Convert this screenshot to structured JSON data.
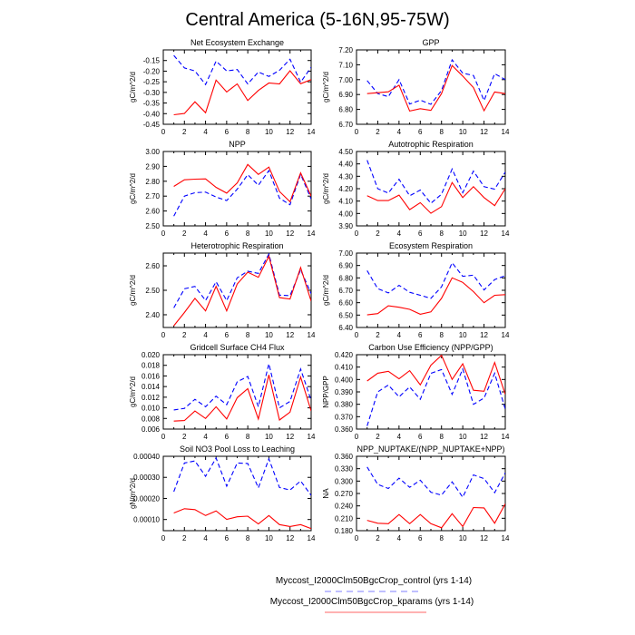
{
  "title": "Central America (5-16N,95-75W)",
  "legend": [
    {
      "label": "Myccost_I2000Clm50BgcCrop_control (yrs 1-14)",
      "color": "#0000ff",
      "style": "dashed"
    },
    {
      "label": "Myccost_I2000Clm50BgcCrop_kparams (yrs 1-14)",
      "color": "#ff0000",
      "style": "solid"
    }
  ],
  "chart_data": [
    {
      "type": "line",
      "title": "Net Ecosystem Exchange",
      "ylabel": "gC/m^2/d",
      "xlim": [
        0,
        14
      ],
      "ylim": [
        -0.45,
        -0.1
      ],
      "xticks": [
        "0",
        "2",
        "4",
        "6",
        "8",
        "10",
        "12",
        "14"
      ],
      "yticks": [
        {
          "v": -0.45,
          "l": "-0.45"
        },
        {
          "v": -0.4,
          "l": "-0.40"
        },
        {
          "v": -0.35,
          "l": "-0.35"
        },
        {
          "v": -0.3,
          "l": "-0.30"
        },
        {
          "v": -0.25,
          "l": "-0.25"
        },
        {
          "v": -0.2,
          "l": "-0.20"
        },
        {
          "v": -0.15,
          "l": "-0.15"
        }
      ],
      "x": [
        1,
        2,
        3,
        4,
        5,
        6,
        7,
        8,
        9,
        10,
        11,
        12,
        13,
        14
      ],
      "series": [
        {
          "name": "control",
          "values": [
            -0.126,
            -0.185,
            -0.199,
            -0.263,
            -0.153,
            -0.199,
            -0.192,
            -0.26,
            -0.204,
            -0.225,
            -0.196,
            -0.144,
            -0.252,
            -0.182
          ]
        },
        {
          "name": "kparams",
          "values": [
            -0.405,
            -0.399,
            -0.344,
            -0.396,
            -0.242,
            -0.298,
            -0.26,
            -0.338,
            -0.291,
            -0.256,
            -0.26,
            -0.198,
            -0.259,
            -0.24
          ]
        }
      ]
    },
    {
      "type": "line",
      "title": "GPP",
      "ylabel": "gC/m^2/d",
      "xlim": [
        0,
        14
      ],
      "ylim": [
        6.7,
        7.2
      ],
      "xticks": [
        "0",
        "2",
        "4",
        "6",
        "8",
        "10",
        "12",
        "14"
      ],
      "yticks": [
        {
          "v": 6.7,
          "l": "6.70"
        },
        {
          "v": 6.8,
          "l": "6.80"
        },
        {
          "v": 6.9,
          "l": "6.90"
        },
        {
          "v": 7.0,
          "l": "7.00"
        },
        {
          "v": 7.1,
          "l": "7.10"
        },
        {
          "v": 7.2,
          "l": "7.20"
        }
      ],
      "x": [
        1,
        2,
        3,
        4,
        5,
        6,
        7,
        8,
        9,
        10,
        11,
        12,
        13,
        14
      ],
      "series": [
        {
          "name": "control",
          "values": [
            6.994,
            6.906,
            6.886,
            7.0,
            6.836,
            6.862,
            6.834,
            6.927,
            7.133,
            7.044,
            7.028,
            6.86,
            7.04,
            7.0
          ]
        },
        {
          "name": "kparams",
          "values": [
            6.906,
            6.912,
            6.918,
            6.963,
            6.789,
            6.805,
            6.793,
            6.906,
            7.095,
            7.024,
            6.947,
            6.791,
            6.917,
            6.906
          ]
        }
      ]
    },
    {
      "type": "line",
      "title": "NPP",
      "ylabel": "gC/m^2/d",
      "xlim": [
        0,
        14
      ],
      "ylim": [
        2.5,
        3.0
      ],
      "xticks": [
        "0",
        "2",
        "4",
        "6",
        "8",
        "10",
        "12",
        "14"
      ],
      "yticks": [
        {
          "v": 2.5,
          "l": "2.50"
        },
        {
          "v": 2.6,
          "l": "2.60"
        },
        {
          "v": 2.7,
          "l": "2.70"
        },
        {
          "v": 2.8,
          "l": "2.80"
        },
        {
          "v": 2.9,
          "l": "2.90"
        },
        {
          "v": 3.0,
          "l": "3.00"
        }
      ],
      "x": [
        1,
        2,
        3,
        4,
        5,
        6,
        7,
        8,
        9,
        10,
        11,
        12,
        13,
        14
      ],
      "series": [
        {
          "name": "control",
          "values": [
            2.565,
            2.7,
            2.723,
            2.727,
            2.694,
            2.67,
            2.747,
            2.844,
            2.773,
            2.872,
            2.686,
            2.642,
            2.847,
            2.68
          ]
        },
        {
          "name": "kparams",
          "values": [
            2.765,
            2.81,
            2.814,
            2.816,
            2.759,
            2.72,
            2.789,
            2.913,
            2.846,
            2.895,
            2.731,
            2.662,
            2.856,
            2.7
          ]
        }
      ]
    },
    {
      "type": "line",
      "title": "Autotrophic Respiration",
      "ylabel": "gC/m^2/d",
      "xlim": [
        0,
        14
      ],
      "ylim": [
        3.9,
        4.5
      ],
      "xticks": [
        "0",
        "2",
        "4",
        "6",
        "8",
        "10",
        "12",
        "14"
      ],
      "yticks": [
        {
          "v": 3.9,
          "l": "3.90"
        },
        {
          "v": 4.0,
          "l": "4.00"
        },
        {
          "v": 4.1,
          "l": "4.10"
        },
        {
          "v": 4.2,
          "l": "4.20"
        },
        {
          "v": 4.3,
          "l": "4.30"
        },
        {
          "v": 4.4,
          "l": "4.40"
        },
        {
          "v": 4.5,
          "l": "4.50"
        }
      ],
      "x": [
        1,
        2,
        3,
        4,
        5,
        6,
        7,
        8,
        9,
        10,
        11,
        12,
        13,
        14
      ],
      "series": [
        {
          "name": "control",
          "values": [
            4.43,
            4.2,
            4.165,
            4.276,
            4.143,
            4.189,
            4.082,
            4.155,
            4.359,
            4.167,
            4.342,
            4.216,
            4.196,
            4.334
          ]
        },
        {
          "name": "kparams",
          "values": [
            4.143,
            4.104,
            4.104,
            4.148,
            4.031,
            4.087,
            4.002,
            4.055,
            4.25,
            4.128,
            4.216,
            4.128,
            4.063,
            4.2
          ]
        }
      ]
    },
    {
      "type": "line",
      "title": "Heterotrophic Respiration",
      "ylabel": "gC/m^2/d",
      "xlim": [
        0,
        14
      ],
      "ylim": [
        2.348,
        2.652
      ],
      "xticks": [
        "0",
        "2",
        "4",
        "6",
        "8",
        "10",
        "12",
        "14"
      ],
      "yticks": [
        {
          "v": 2.4,
          "l": "2.40"
        },
        {
          "v": 2.5,
          "l": "2.50"
        },
        {
          "v": 2.6,
          "l": "2.60"
        }
      ],
      "x": [
        1,
        2,
        3,
        4,
        5,
        6,
        7,
        8,
        9,
        10,
        11,
        12,
        13,
        14
      ],
      "series": [
        {
          "name": "control",
          "values": [
            2.428,
            2.506,
            2.516,
            2.458,
            2.535,
            2.458,
            2.551,
            2.578,
            2.569,
            2.648,
            2.48,
            2.478,
            2.584,
            2.486
          ]
        },
        {
          "name": "kparams",
          "values": [
            2.355,
            2.409,
            2.467,
            2.416,
            2.516,
            2.416,
            2.526,
            2.574,
            2.553,
            2.639,
            2.47,
            2.464,
            2.593,
            2.455
          ]
        }
      ]
    },
    {
      "type": "line",
      "title": "Ecosystem Respiration",
      "ylabel": "gC/m^2/d",
      "xlim": [
        0,
        14
      ],
      "ylim": [
        6.4,
        7.0
      ],
      "xticks": [
        "0",
        "2",
        "4",
        "6",
        "8",
        "10",
        "12",
        "14"
      ],
      "yticks": [
        {
          "v": 6.4,
          "l": "6.40"
        },
        {
          "v": 6.5,
          "l": "6.50"
        },
        {
          "v": 6.6,
          "l": "6.60"
        },
        {
          "v": 6.7,
          "l": "6.70"
        },
        {
          "v": 6.8,
          "l": "6.80"
        },
        {
          "v": 6.9,
          "l": "6.90"
        },
        {
          "v": 7.0,
          "l": "7.00"
        }
      ],
      "x": [
        1,
        2,
        3,
        4,
        5,
        6,
        7,
        8,
        9,
        10,
        11,
        12,
        13,
        14
      ],
      "series": [
        {
          "name": "control",
          "values": [
            6.859,
            6.713,
            6.679,
            6.74,
            6.684,
            6.66,
            6.635,
            6.728,
            6.922,
            6.813,
            6.822,
            6.703,
            6.786,
            6.818
          ]
        },
        {
          "name": "kparams",
          "values": [
            6.502,
            6.512,
            6.575,
            6.563,
            6.546,
            6.507,
            6.526,
            6.635,
            6.8,
            6.764,
            6.689,
            6.6,
            6.66,
            6.665
          ]
        }
      ]
    },
    {
      "type": "line",
      "title": "Gridcell Surface CH4 Flux",
      "ylabel": "gC/m^2/d",
      "xlim": [
        0,
        14
      ],
      "ylim": [
        0.006,
        0.02
      ],
      "xticks": [
        "0",
        "2",
        "4",
        "6",
        "8",
        "10",
        "12",
        "14"
      ],
      "yticks": [
        {
          "v": 0.006,
          "l": "0.006"
        },
        {
          "v": 0.008,
          "l": "0.008"
        },
        {
          "v": 0.01,
          "l": "0.010"
        },
        {
          "v": 0.012,
          "l": "0.012"
        },
        {
          "v": 0.014,
          "l": "0.014"
        },
        {
          "v": 0.016,
          "l": "0.016"
        },
        {
          "v": 0.018,
          "l": "0.018"
        },
        {
          "v": 0.02,
          "l": "0.020"
        }
      ],
      "x": [
        1,
        2,
        3,
        4,
        5,
        6,
        7,
        8,
        9,
        10,
        11,
        12,
        13,
        14
      ],
      "series": [
        {
          "name": "control",
          "values": [
            0.0096,
            0.0099,
            0.0116,
            0.0102,
            0.0122,
            0.0106,
            0.0149,
            0.0159,
            0.0102,
            0.0183,
            0.01,
            0.0112,
            0.0173,
            0.0114
          ]
        },
        {
          "name": "kparams",
          "values": [
            0.0075,
            0.0076,
            0.0094,
            0.008,
            0.0102,
            0.0079,
            0.0119,
            0.0136,
            0.0079,
            0.0162,
            0.0077,
            0.0092,
            0.0158,
            0.0094
          ]
        }
      ]
    },
    {
      "type": "line",
      "title": "Carbon Use Efficiency (NPP/GPP)",
      "ylabel": "NPP/GPP",
      "xlim": [
        0,
        14
      ],
      "ylim": [
        0.36,
        0.42
      ],
      "xticks": [
        "0",
        "2",
        "4",
        "6",
        "8",
        "10",
        "12",
        "14"
      ],
      "yticks": [
        {
          "v": 0.36,
          "l": "0.360"
        },
        {
          "v": 0.37,
          "l": "0.370"
        },
        {
          "v": 0.38,
          "l": "0.380"
        },
        {
          "v": 0.39,
          "l": "0.390"
        },
        {
          "v": 0.4,
          "l": "0.400"
        },
        {
          "v": 0.41,
          "l": "0.410"
        },
        {
          "v": 0.42,
          "l": "0.420"
        }
      ],
      "x": [
        1,
        2,
        3,
        4,
        5,
        6,
        7,
        8,
        9,
        10,
        11,
        12,
        13,
        14
      ],
      "series": [
        {
          "name": "control",
          "values": [
            0.3625,
            0.39,
            0.3955,
            0.386,
            0.394,
            0.384,
            0.405,
            0.408,
            0.388,
            0.4085,
            0.38,
            0.385,
            0.405,
            0.376
          ]
        },
        {
          "name": "kparams",
          "values": [
            0.3988,
            0.4051,
            0.4066,
            0.4005,
            0.4071,
            0.3957,
            0.4115,
            0.4195,
            0.4,
            0.4127,
            0.3913,
            0.3905,
            0.4137,
            0.388
          ]
        }
      ]
    },
    {
      "type": "line",
      "title": "Soil NO3 Pool Loss to Leaching",
      "ylabel": "gN/m^2/d",
      "xlim": [
        0,
        14
      ],
      "ylim": [
        4.7e-05,
        0.0004
      ],
      "xticks": [
        "0",
        "2",
        "4",
        "6",
        "8",
        "10",
        "12",
        "14"
      ],
      "yticks": [
        {
          "v": 0.0001,
          "l": "0.00010"
        },
        {
          "v": 0.0002,
          "l": "0.00020"
        },
        {
          "v": 0.0003,
          "l": "0.00030"
        },
        {
          "v": 0.0004,
          "l": "0.00040"
        }
      ],
      "x": [
        1,
        2,
        3,
        4,
        5,
        6,
        7,
        8,
        9,
        10,
        11,
        12,
        13,
        14
      ],
      "series": [
        {
          "name": "control",
          "values": [
            0.000232,
            0.000368,
            0.000378,
            0.000305,
            0.000392,
            0.000258,
            0.000368,
            0.000366,
            0.00025,
            0.000388,
            0.000252,
            0.00024,
            0.000283,
            0.000215
          ]
        },
        {
          "name": "kparams",
          "values": [
            0.000131,
            0.000151,
            0.000147,
            0.000119,
            0.000141,
            0.000101,
            0.000113,
            0.000116,
            7.9e-05,
            0.000119,
            7.6e-05,
            6.7e-05,
            7.6e-05,
            5.7e-05
          ]
        }
      ]
    },
    {
      "type": "line",
      "title": "NPP_NUPTAKE/(NPP_NUPTAKE+NPP)",
      "ylabel": "NA",
      "xlim": [
        0,
        14
      ],
      "ylim": [
        0.18,
        0.36
      ],
      "xticks": [
        "0",
        "2",
        "4",
        "6",
        "8",
        "10",
        "12",
        "14"
      ],
      "yticks": [
        {
          "v": 0.18,
          "l": "0.180"
        },
        {
          "v": 0.21,
          "l": "0.210"
        },
        {
          "v": 0.24,
          "l": "0.240"
        },
        {
          "v": 0.27,
          "l": "0.270"
        },
        {
          "v": 0.3,
          "l": "0.300"
        },
        {
          "v": 0.33,
          "l": "0.330"
        },
        {
          "v": 0.36,
          "l": "0.360"
        }
      ],
      "x": [
        1,
        2,
        3,
        4,
        5,
        6,
        7,
        8,
        9,
        10,
        11,
        12,
        13,
        14
      ],
      "series": [
        {
          "name": "control",
          "values": [
            0.334,
            0.292,
            0.282,
            0.307,
            0.285,
            0.302,
            0.273,
            0.266,
            0.298,
            0.261,
            0.315,
            0.306,
            0.272,
            0.32
          ]
        },
        {
          "name": "kparams",
          "values": [
            0.205,
            0.198,
            0.197,
            0.219,
            0.197,
            0.219,
            0.197,
            0.187,
            0.221,
            0.19,
            0.236,
            0.235,
            0.198,
            0.245
          ]
        }
      ]
    }
  ]
}
